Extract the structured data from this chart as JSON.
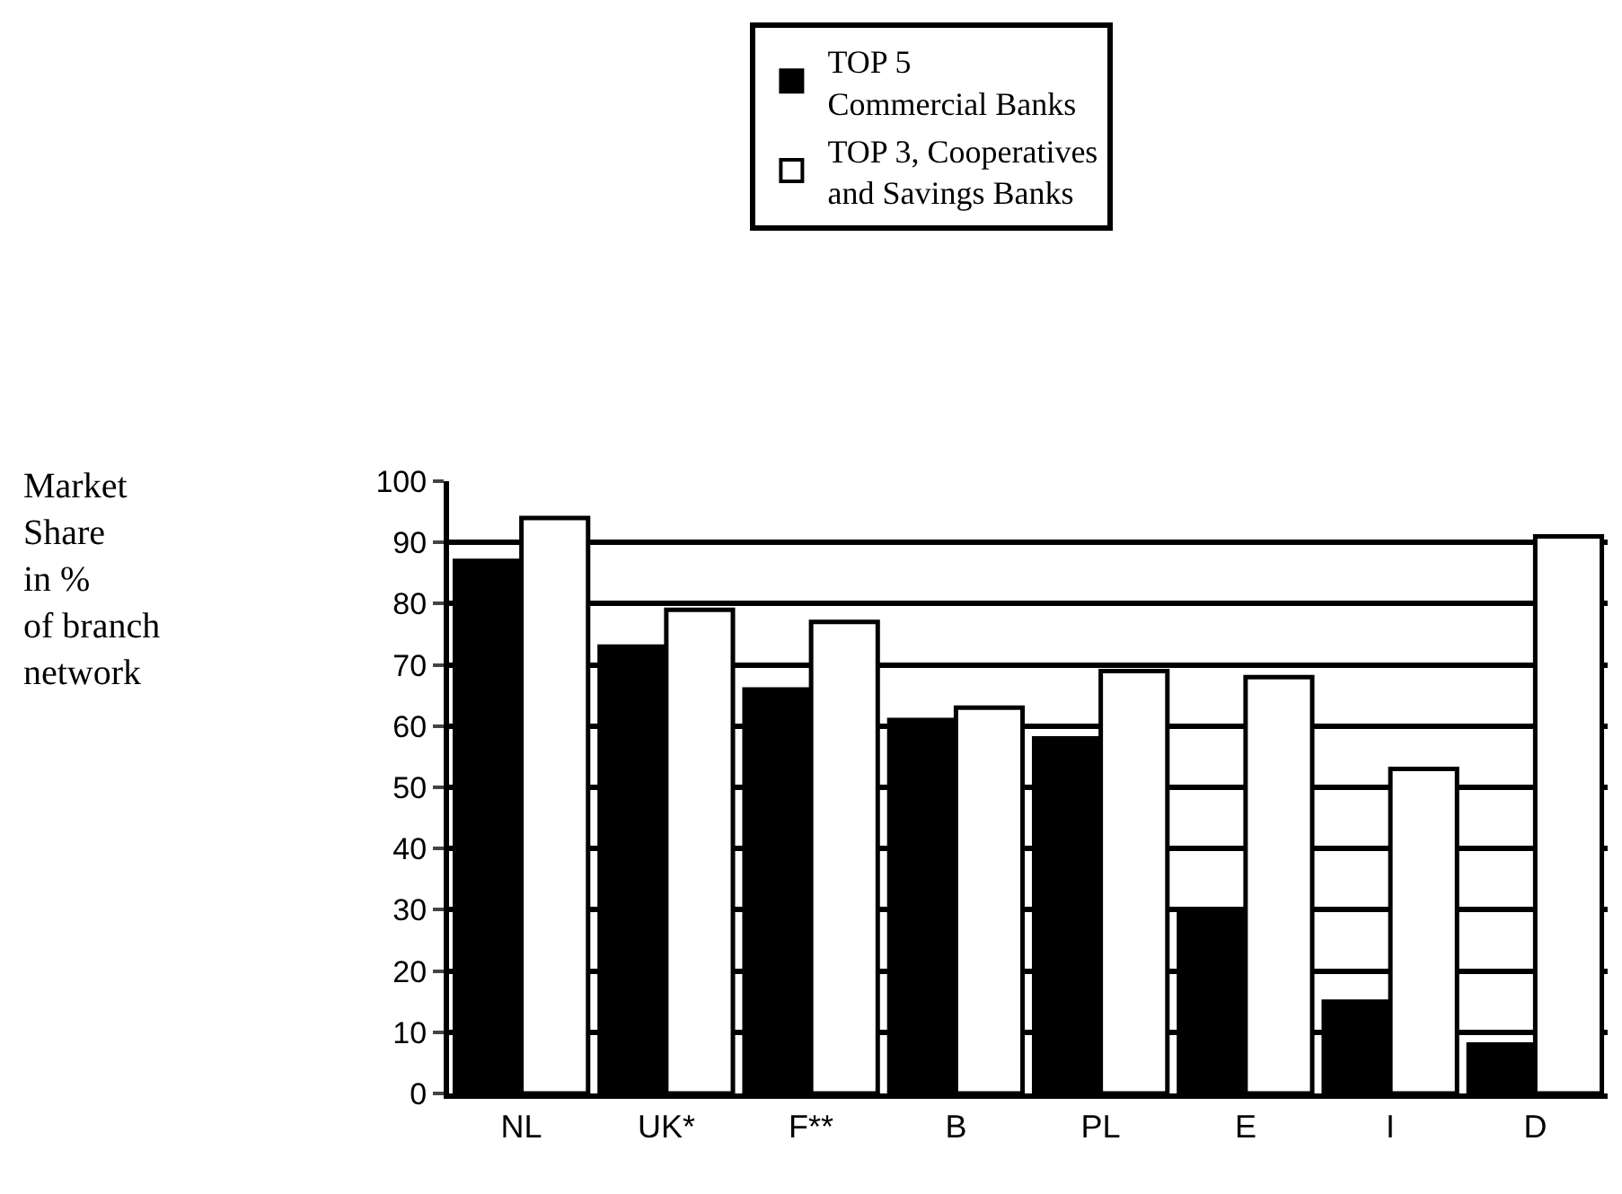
{
  "chart_data": {
    "type": "bar",
    "annotations": [
      "Market\nShare\nin %\nof branch\nnetwork"
    ],
    "categories": [
      "NL",
      "UK*",
      "F**",
      "B",
      "PL",
      "E",
      "I",
      "D"
    ],
    "series": [
      {
        "name": "TOP 5\nCommercial Banks",
        "color": "#000000",
        "values": [
          87,
          73,
          66,
          61,
          58,
          30,
          15,
          8
        ]
      },
      {
        "name": "TOP 3, Cooperatives\nand Savings Banks",
        "color": "#ffffff",
        "values": [
          94,
          79,
          77,
          63,
          69,
          68,
          53,
          91
        ]
      }
    ],
    "ylim": [
      0,
      100
    ],
    "yticks": [
      0,
      10,
      20,
      30,
      40,
      50,
      60,
      70,
      80,
      90,
      100
    ],
    "grid": "y",
    "legend": "top"
  }
}
